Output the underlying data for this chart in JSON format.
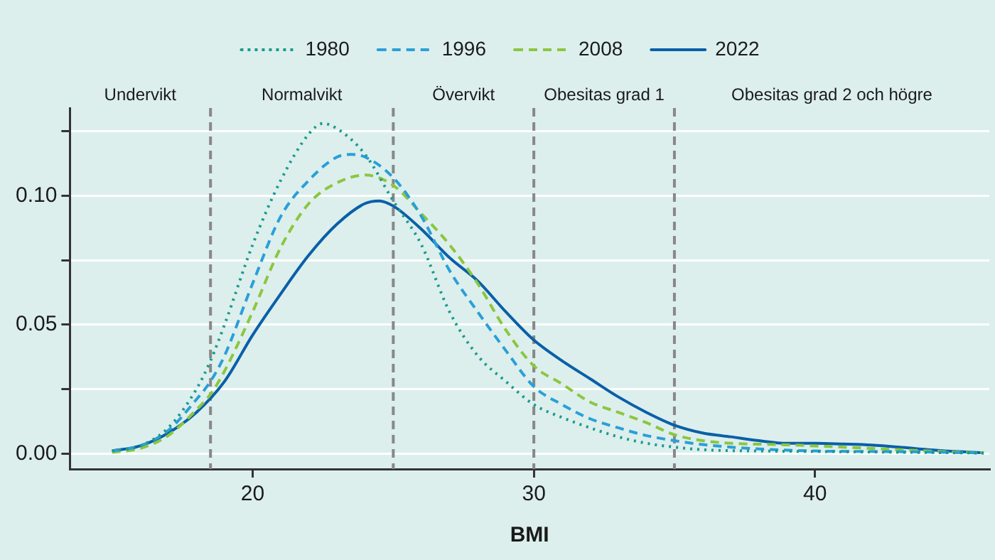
{
  "chart_data": {
    "type": "line",
    "xlabel": "BMI",
    "xlim": [
      13.5,
      46.2
    ],
    "xticks": [
      20,
      30,
      40
    ],
    "ylim": [
      -0.006,
      0.134
    ],
    "yticks": [
      {
        "value": 0,
        "label": "0.00"
      },
      {
        "value": 0.025,
        "label": null
      },
      {
        "value": 0.05,
        "label": "0.05"
      },
      {
        "value": 0.075,
        "label": null
      },
      {
        "value": 0.1,
        "label": "0.10"
      },
      {
        "value": 0.125,
        "label": null
      }
    ],
    "grid": "y",
    "legend": "top",
    "marker": "none",
    "ref_lines": [
      {
        "axis": "x",
        "value": 18.5,
        "color": "#888888",
        "line_style": "dashed"
      },
      {
        "axis": "x",
        "value": 25,
        "color": "#888888",
        "line_style": "dashed"
      },
      {
        "axis": "x",
        "value": 30,
        "color": "#888888",
        "line_style": "dashed"
      },
      {
        "axis": "x",
        "value": 35,
        "color": "#888888",
        "line_style": "dashed"
      }
    ],
    "annotations": [
      "Undervikt",
      "Normalvikt",
      "Övervikt",
      "Obesitas grad 1",
      "Obesitas grad 2 och högre"
    ],
    "series": [
      {
        "name": "1980",
        "color": "#1a9a8c",
        "line_style": "dotted",
        "x": [
          15,
          16,
          17,
          18,
          18.5,
          19,
          20,
          21,
          22,
          22.5,
          23,
          24,
          25,
          26,
          27,
          28,
          29,
          30,
          31,
          32,
          33,
          34,
          35,
          36,
          38,
          40,
          42,
          44,
          46
        ],
        "values": [
          0.001,
          0.003,
          0.01,
          0.025,
          0.036,
          0.05,
          0.081,
          0.106,
          0.124,
          0.128,
          0.126,
          0.116,
          0.098,
          0.081,
          0.055,
          0.038,
          0.028,
          0.019,
          0.014,
          0.01,
          0.0065,
          0.004,
          0.0025,
          0.0015,
          0.001,
          0.0008,
          0.0006,
          0.0004,
          0.0002
        ]
      },
      {
        "name": "1996",
        "color": "#2a9fd8",
        "line_style": "dashed",
        "x": [
          15,
          16,
          17,
          18,
          18.5,
          19,
          20,
          21,
          22,
          23,
          23.5,
          24,
          25,
          26,
          27,
          28,
          29,
          30,
          31,
          32,
          33,
          34,
          35,
          36,
          38,
          40,
          42,
          44,
          46
        ],
        "values": [
          0.001,
          0.003,
          0.009,
          0.021,
          0.028,
          0.038,
          0.066,
          0.092,
          0.106,
          0.115,
          0.116,
          0.115,
          0.107,
          0.092,
          0.071,
          0.055,
          0.04,
          0.026,
          0.019,
          0.0135,
          0.01,
          0.007,
          0.005,
          0.0035,
          0.0018,
          0.001,
          0.0008,
          0.0006,
          0.0002
        ]
      },
      {
        "name": "2008",
        "color": "#8cc63f",
        "line_style": "dashed",
        "x": [
          15,
          16,
          17,
          18,
          18.5,
          19,
          20,
          21,
          22,
          23,
          24,
          25,
          26,
          27,
          28,
          29,
          30,
          31,
          32,
          33,
          34,
          35,
          36,
          37,
          39,
          41,
          43,
          45,
          46
        ],
        "values": [
          0.0005,
          0.002,
          0.007,
          0.017,
          0.023,
          0.032,
          0.055,
          0.08,
          0.097,
          0.105,
          0.108,
          0.104,
          0.093,
          0.081,
          0.066,
          0.048,
          0.034,
          0.027,
          0.02,
          0.016,
          0.012,
          0.0073,
          0.005,
          0.004,
          0.0034,
          0.0025,
          0.0015,
          0.0006,
          0.0003
        ]
      },
      {
        "name": "2022",
        "color": "#0a5fa8",
        "line_style": "solid",
        "x": [
          15,
          16,
          17,
          18,
          19,
          20,
          21,
          22,
          23,
          24,
          24.5,
          25,
          26,
          27,
          28,
          29,
          30,
          31,
          32,
          33,
          34,
          35,
          36,
          37,
          38,
          39,
          40,
          41,
          42,
          43,
          44,
          45,
          46
        ],
        "values": [
          0.001,
          0.003,
          0.008,
          0.016,
          0.028,
          0.046,
          0.062,
          0.077,
          0.089,
          0.097,
          0.098,
          0.096,
          0.087,
          0.076,
          0.067,
          0.055,
          0.044,
          0.036,
          0.029,
          0.022,
          0.016,
          0.011,
          0.008,
          0.0065,
          0.005,
          0.004,
          0.004,
          0.0037,
          0.0033,
          0.0025,
          0.0015,
          0.0008,
          0.0003
        ]
      }
    ]
  }
}
